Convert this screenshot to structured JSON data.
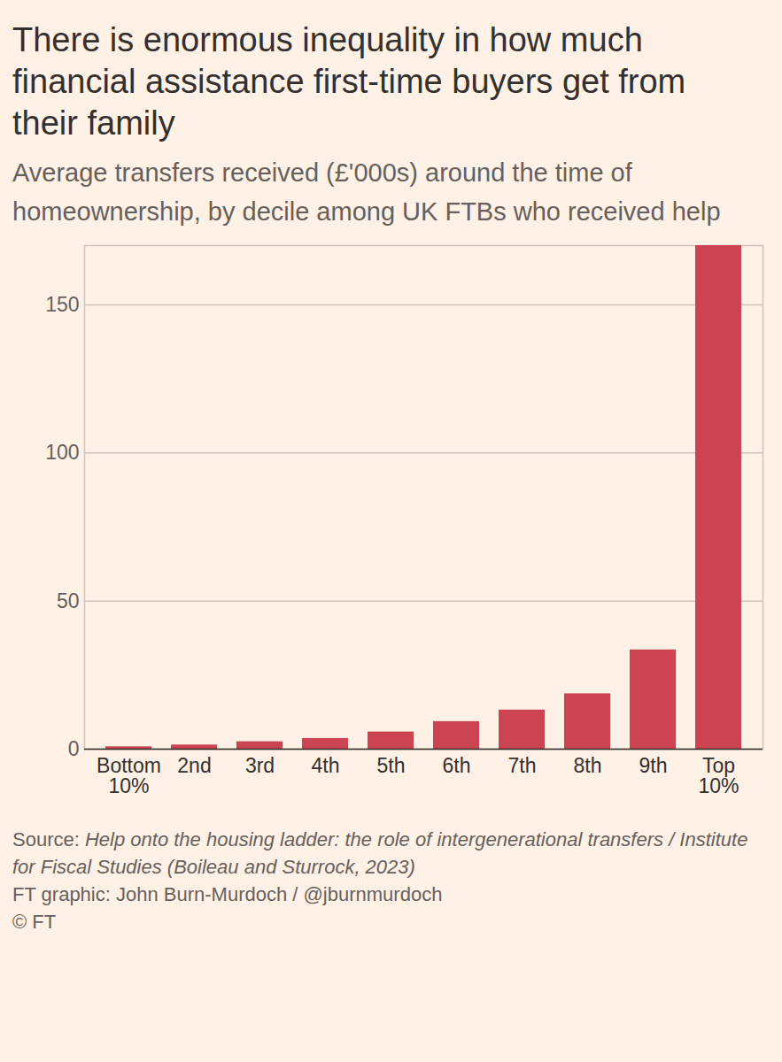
{
  "chart_data": {
    "type": "bar",
    "title": "There is enormous inequality in how much financial assistance first-time buyers get from their family",
    "subtitle": "Average transfers received (£'000s) around the time of homeownership, by decile among UK FTBs who received help",
    "categories": [
      "Bottom\n10%",
      "2nd",
      "3rd",
      "4th",
      "5th",
      "6th",
      "7th",
      "8th",
      "9th",
      "Top\n10%"
    ],
    "values": [
      0.8,
      1.4,
      2.5,
      3.6,
      5.8,
      9.3,
      13.2,
      18.7,
      33.5,
      170
    ],
    "color": "#cc4451",
    "ylim": [
      0,
      170
    ],
    "yticks": [
      0,
      50,
      100,
      150
    ],
    "grid": true,
    "source_label": "Source:",
    "source": "Help onto the housing ladder: the role of intergenerational transfers / Institute for Fiscal Studies (Boileau and Sturrock, 2023)",
    "credits": [
      "FT graphic: John Burn-Murdoch / @jburnmurdoch",
      "© FT"
    ]
  }
}
